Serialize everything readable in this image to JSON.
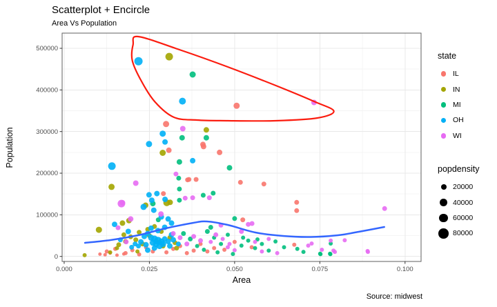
{
  "colors": {
    "IL": "#F8766D",
    "IN": "#A3A500",
    "MI": "#00BF7D",
    "OH": "#00B0F6",
    "WI": "#E76BF3",
    "encircle": "#FB1C0F",
    "smooth": "#3366FF",
    "grid_major": "#E8E8E8",
    "grid_minor": "#F4F4F4",
    "panel_border": "#5F5F5F",
    "tick_mark": "#333333",
    "tick_label": "#4D4D4D",
    "size_legend_dot": "#000000"
  },
  "legend": {
    "state_title": "state",
    "states": [
      "IL",
      "IN",
      "MI",
      "OH",
      "WI"
    ],
    "state_dot_r": 3.8,
    "size_title": "popdensity",
    "sizes": [
      {
        "label": "20000",
        "r": 4.0
      },
      {
        "label": "40000",
        "r": 5.2
      },
      {
        "label": "60000",
        "r": 6.3
      },
      {
        "label": "80000",
        "r": 7.3
      }
    ]
  },
  "chart_data": {
    "type": "scatter",
    "title": "Scatterplot + Encircle",
    "subtitle": "Area Vs Population",
    "xlabel": "Area",
    "ylabel": "Population",
    "caption": "Source: midwest",
    "legend_position": "right",
    "grid": "major+minor",
    "x_domain": [
      -0.0006,
      0.1047
    ],
    "y_domain": [
      -12100,
      536500
    ],
    "x_ticks": [
      0,
      0.025,
      0.05,
      0.075,
      0.1
    ],
    "x_tick_labels": [
      "0.000",
      "0.025",
      "0.050",
      "0.075",
      "0.100"
    ],
    "x_minor": [
      0.0125,
      0.0375,
      0.0625,
      0.0875
    ],
    "y_ticks": [
      0,
      100000,
      200000,
      300000,
      400000,
      500000
    ],
    "y_tick_labels": [
      "0",
      "100000",
      "200000",
      "300000",
      "400000",
      "500000"
    ],
    "y_minor": [
      50000,
      150000,
      250000,
      350000,
      450000
    ],
    "series": [
      {
        "name": "IL",
        "points": [
          [
            0.0506,
            362000,
            4.5
          ],
          [
            0.0299,
            318000,
            4.5
          ],
          [
            0.0407,
            269000,
            4
          ],
          [
            0.0409,
            264000,
            4
          ],
          [
            0.0307,
            255000,
            4
          ],
          [
            0.0456,
            250000,
            4
          ],
          [
            0.0366,
            185000,
            3.5
          ],
          [
            0.0387,
            185000,
            3.5
          ],
          [
            0.0517,
            178000,
            3.5
          ],
          [
            0.0586,
            174000,
            3.5
          ],
          [
            0.0362,
            184000,
            3.5
          ],
          [
            0.0291,
            151000,
            3.5
          ],
          [
            0.0682,
            130000,
            3.5
          ],
          [
            0.0682,
            110000,
            3.5
          ],
          [
            0.0524,
            88000,
            3.5
          ],
          [
            0.0675,
            28000,
            3
          ],
          [
            0.0125,
            12000,
            3
          ],
          [
            0.015,
            18000,
            3
          ],
          [
            0.018,
            8000,
            3
          ],
          [
            0.02,
            15000,
            3
          ],
          [
            0.022,
            5000,
            3
          ],
          [
            0.024,
            22000,
            3
          ],
          [
            0.026,
            12000,
            3
          ],
          [
            0.028,
            35000,
            3
          ],
          [
            0.03,
            10000,
            3
          ],
          [
            0.032,
            18000,
            3
          ],
          [
            0.034,
            25000,
            3
          ],
          [
            0.036,
            8000,
            3
          ],
          [
            0.038,
            14000,
            3
          ],
          [
            0.04,
            30000,
            3
          ],
          [
            0.042,
            12000,
            3
          ],
          [
            0.044,
            20000,
            3
          ],
          [
            0.047,
            16000,
            3
          ],
          [
            0.05,
            35000,
            3
          ],
          [
            0.055,
            22000,
            3
          ],
          [
            0.0105,
            5500,
            2.5
          ],
          [
            0.012,
            4000,
            2.5
          ],
          [
            0.0135,
            8000,
            2.5
          ],
          [
            0.0155,
            3000,
            2.5
          ],
          [
            0.0175,
            6000,
            2.5
          ]
        ]
      },
      {
        "name": "IN",
        "points": [
          [
            0.0308,
            480000,
            5.5
          ],
          [
            0.0417,
            304000,
            4
          ],
          [
            0.0289,
            249000,
            4.5
          ],
          [
            0.0139,
            167000,
            4.5
          ],
          [
            0.0311,
            130000,
            4
          ],
          [
            0.0239,
            123000,
            4
          ],
          [
            0.0102,
            64000,
            4.5
          ],
          [
            0.006,
            3000,
            3
          ],
          [
            0.0171,
            80000,
            4
          ],
          [
            0.019,
            86000,
            4
          ],
          [
            0.0301,
            129000,
            5
          ],
          [
            0.021,
            40000,
            3.5
          ],
          [
            0.023,
            30000,
            3.5
          ],
          [
            0.025,
            50000,
            3.5
          ],
          [
            0.027,
            36000,
            3.5
          ],
          [
            0.029,
            25000,
            3.5
          ],
          [
            0.031,
            45000,
            3.5
          ],
          [
            0.033,
            20000,
            3.5
          ],
          [
            0.016,
            28000,
            3.5
          ],
          [
            0.018,
            36000,
            3.5
          ],
          [
            0.0135,
            10000,
            3
          ],
          [
            0.0155,
            20000,
            3
          ],
          [
            0.0245,
            65000,
            3.5
          ],
          [
            0.0265,
            72000,
            3.5
          ],
          [
            0.022,
            58000,
            3.5
          ],
          [
            0.0195,
            47000,
            3.5
          ],
          [
            0.0285,
            60000,
            3.5
          ],
          [
            0.0215,
            12000,
            3
          ],
          [
            0.0175,
            52000,
            3.5
          ],
          [
            0.0325,
            33000,
            3.5
          ]
        ]
      },
      {
        "name": "MI",
        "points": [
          [
            0.0377,
            437000,
            4.5
          ],
          [
            0.0346,
            285000,
            4
          ],
          [
            0.0417,
            285000,
            4
          ],
          [
            0.0485,
            213000,
            4
          ],
          [
            0.0338,
            227000,
            4
          ],
          [
            0.0338,
            162000,
            3.5
          ],
          [
            0.0336,
            188000,
            3.5
          ],
          [
            0.0437,
            152000,
            3.5
          ],
          [
            0.0408,
            147000,
            3.5
          ],
          [
            0.0338,
            135000,
            3.5
          ],
          [
            0.026,
            127000,
            4
          ],
          [
            0.05,
            91000,
            3.5
          ],
          [
            0.0276,
            88000,
            3.5
          ],
          [
            0.0567,
            41000,
            3
          ],
          [
            0.0645,
            22000,
            3
          ],
          [
            0.0684,
            18000,
            3
          ],
          [
            0.0702,
            11000,
            3
          ],
          [
            0.0752,
            5500,
            3
          ],
          [
            0.0781,
            5500,
            3
          ],
          [
            0.0782,
            31000,
            3
          ],
          [
            0.0751,
            6500,
            3
          ],
          [
            0.078,
            6500,
            3
          ],
          [
            0.042,
            60000,
            3.5
          ],
          [
            0.044,
            45000,
            3
          ],
          [
            0.046,
            30000,
            3
          ],
          [
            0.048,
            52000,
            3
          ],
          [
            0.052,
            26000,
            3
          ],
          [
            0.054,
            38000,
            3
          ],
          [
            0.056,
            20000,
            3
          ],
          [
            0.058,
            30000,
            3
          ],
          [
            0.06,
            14000,
            3
          ],
          [
            0.062,
            36000,
            3
          ],
          [
            0.035,
            55000,
            3.5
          ],
          [
            0.037,
            42000,
            3.5
          ],
          [
            0.039,
            25000,
            3
          ],
          [
            0.041,
            16000,
            3
          ],
          [
            0.043,
            70000,
            3.5
          ],
          [
            0.045,
            10000,
            3
          ],
          [
            0.0495,
            6000,
            3
          ],
          [
            0.0525,
            45000,
            3
          ]
        ]
      },
      {
        "name": "OH",
        "points": [
          [
            0.0218,
            469000,
            6
          ],
          [
            0.0347,
            373000,
            5
          ],
          [
            0.0289,
            295000,
            4.5
          ],
          [
            0.0249,
            270000,
            4.5
          ],
          [
            0.0296,
            275000,
            4
          ],
          [
            0.0377,
            230000,
            4
          ],
          [
            0.014,
            217000,
            5.5
          ],
          [
            0.0249,
            148000,
            4
          ],
          [
            0.0272,
            151000,
            4
          ],
          [
            0.0257,
            135000,
            4
          ],
          [
            0.0296,
            137000,
            4
          ],
          [
            0.0148,
            77000,
            4
          ],
          [
            0.0233,
            119000,
            4.5
          ],
          [
            0.0263,
            111000,
            4
          ],
          [
            0.0255,
            45000,
            4.5
          ],
          [
            0.0265,
            42000,
            5
          ],
          [
            0.0275,
            38000,
            5.5
          ],
          [
            0.0285,
            35000,
            5
          ],
          [
            0.027,
            30000,
            4.5
          ],
          [
            0.028,
            25000,
            4.5
          ],
          [
            0.026,
            33000,
            4.5
          ],
          [
            0.029,
            30000,
            4.5
          ],
          [
            0.0295,
            42000,
            4
          ],
          [
            0.0305,
            36000,
            4
          ],
          [
            0.024,
            28000,
            4
          ],
          [
            0.0225,
            35000,
            4
          ],
          [
            0.0235,
            48000,
            4
          ],
          [
            0.0245,
            55000,
            4
          ],
          [
            0.0315,
            52000,
            4
          ],
          [
            0.0218,
            25000,
            3.5
          ],
          [
            0.0208,
            30000,
            3.5
          ],
          [
            0.0198,
            22000,
            3.5
          ],
          [
            0.0188,
            60000,
            4
          ],
          [
            0.0255,
            68000,
            4
          ],
          [
            0.0275,
            62000,
            4
          ],
          [
            0.0295,
            70000,
            4
          ],
          [
            0.031,
            25000,
            4
          ],
          [
            0.032,
            40000,
            4
          ],
          [
            0.0335,
            30000,
            3.5
          ],
          [
            0.0305,
            90000,
            4
          ],
          [
            0.0285,
            95000,
            4
          ],
          [
            0.0315,
            80000,
            4
          ],
          [
            0.0165,
            40000,
            3.5
          ],
          [
            0.0265,
            20000,
            4
          ],
          [
            0.0245,
            15000,
            4
          ]
        ]
      },
      {
        "name": "WI",
        "points": [
          [
            0.0733,
            370000,
            4
          ],
          [
            0.0348,
            307000,
            4
          ],
          [
            0.0328,
            198000,
            3.5
          ],
          [
            0.021,
            176000,
            4
          ],
          [
            0.0377,
            141000,
            3.5
          ],
          [
            0.0426,
            141000,
            3.5
          ],
          [
            0.0355,
            140000,
            3.5
          ],
          [
            0.0171,
            129000,
            4
          ],
          [
            0.0168,
            127000,
            5.5
          ],
          [
            0.0158,
            69000,
            3.5
          ],
          [
            0.0284,
            102000,
            4
          ],
          [
            0.054,
            77000,
            3.5
          ],
          [
            0.0551,
            79000,
            3.5
          ],
          [
            0.094,
            115000,
            3.5
          ],
          [
            0.0726,
            31000,
            3
          ],
          [
            0.0782,
            38000,
            3
          ],
          [
            0.0823,
            39000,
            3
          ],
          [
            0.0756,
            16000,
            3
          ],
          [
            0.079,
            14000,
            3
          ],
          [
            0.089,
            13000,
            3
          ],
          [
            0.0716,
            26000,
            3
          ],
          [
            0.0794,
            11000,
            3
          ],
          [
            0.0891,
            11000,
            3
          ],
          [
            0.046,
            75000,
            3.5
          ],
          [
            0.048,
            22000,
            3
          ],
          [
            0.05,
            15000,
            3
          ],
          [
            0.052,
            60000,
            3.5
          ],
          [
            0.056,
            35000,
            3
          ],
          [
            0.058,
            12000,
            3
          ],
          [
            0.06,
            42000,
            3
          ],
          [
            0.0625,
            8000,
            3
          ],
          [
            0.043,
            35000,
            3
          ],
          [
            0.0445,
            52000,
            3.5
          ],
          [
            0.0465,
            42000,
            3
          ],
          [
            0.0485,
            30000,
            3
          ],
          [
            0.038,
            48000,
            3.5
          ],
          [
            0.04,
            38000,
            3.5
          ],
          [
            0.036,
            30000,
            3.5
          ],
          [
            0.034,
            45000,
            3.5
          ],
          [
            0.032,
            55000,
            3.5
          ],
          [
            0.0195,
            90000,
            4
          ],
          [
            0.0182,
            35000,
            3.5
          ]
        ]
      }
    ],
    "smooth_line": [
      [
        0.0061,
        32700
      ],
      [
        0.0136,
        39300
      ],
      [
        0.0217,
        50900
      ],
      [
        0.0298,
        67400
      ],
      [
        0.0379,
        80700
      ],
      [
        0.0419,
        84000
      ],
      [
        0.048,
        75700
      ],
      [
        0.0561,
        57500
      ],
      [
        0.0642,
        49200
      ],
      [
        0.0723,
        46700
      ],
      [
        0.0803,
        50900
      ],
      [
        0.0864,
        59200
      ],
      [
        0.0939,
        70800
      ]
    ],
    "encircle": [
      [
        0.0217,
        528200
      ],
      [
        0.0338,
        496700
      ],
      [
        0.048,
        455300
      ],
      [
        0.0621,
        410500
      ],
      [
        0.0733,
        372400
      ],
      [
        0.0791,
        349200
      ],
      [
        0.0743,
        332600
      ],
      [
        0.0621,
        326000
      ],
      [
        0.048,
        326000
      ],
      [
        0.0389,
        327600
      ],
      [
        0.0322,
        334300
      ],
      [
        0.0267,
        370700
      ],
      [
        0.0227,
        420400
      ],
      [
        0.02,
        470200
      ],
      [
        0.0202,
        508300
      ]
    ]
  }
}
